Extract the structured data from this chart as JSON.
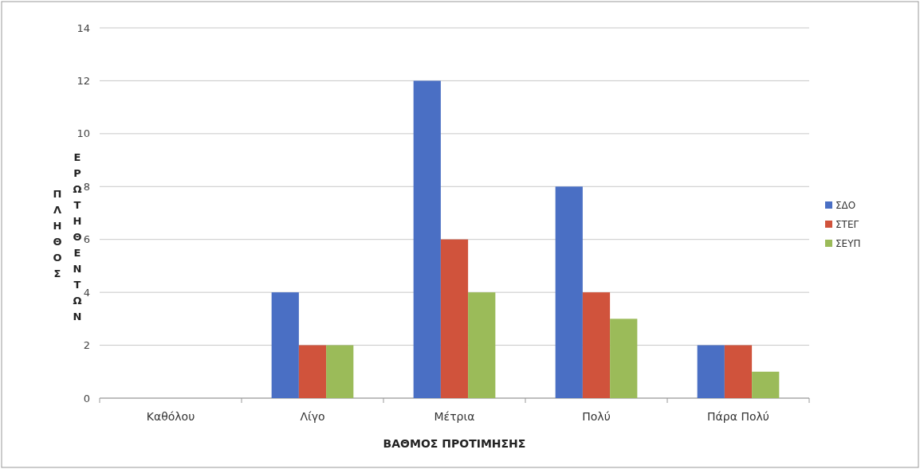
{
  "chart_data": {
    "type": "bar",
    "xlabel": "ΒΑΘΜΟΣ ΠΡΟΤΙΜΗΣΗΣ",
    "ylabel": "ΠΛΗΘΟΣ ΕΡΩΤΗΘΕΝΤΩΝ",
    "categories": [
      "Καθόλου",
      "Λίγο",
      "Μέτρια",
      "Πολύ",
      "Πάρα Πολύ"
    ],
    "series": [
      {
        "name": "ΣΔΟ",
        "color": "#4a6fc4",
        "values": [
          0,
          4,
          12,
          8,
          2
        ]
      },
      {
        "name": "ΣΤΕΓ",
        "color": "#d0533c",
        "values": [
          0,
          2,
          6,
          4,
          2
        ]
      },
      {
        "name": "ΣΕΥΠ",
        "color": "#9bbb59",
        "values": [
          0,
          2,
          4,
          3,
          1
        ]
      }
    ],
    "ylim": [
      0,
      14
    ],
    "yticks": [
      0,
      2,
      4,
      6,
      8,
      10,
      12,
      14
    ],
    "grid": "y",
    "legend": "right"
  }
}
